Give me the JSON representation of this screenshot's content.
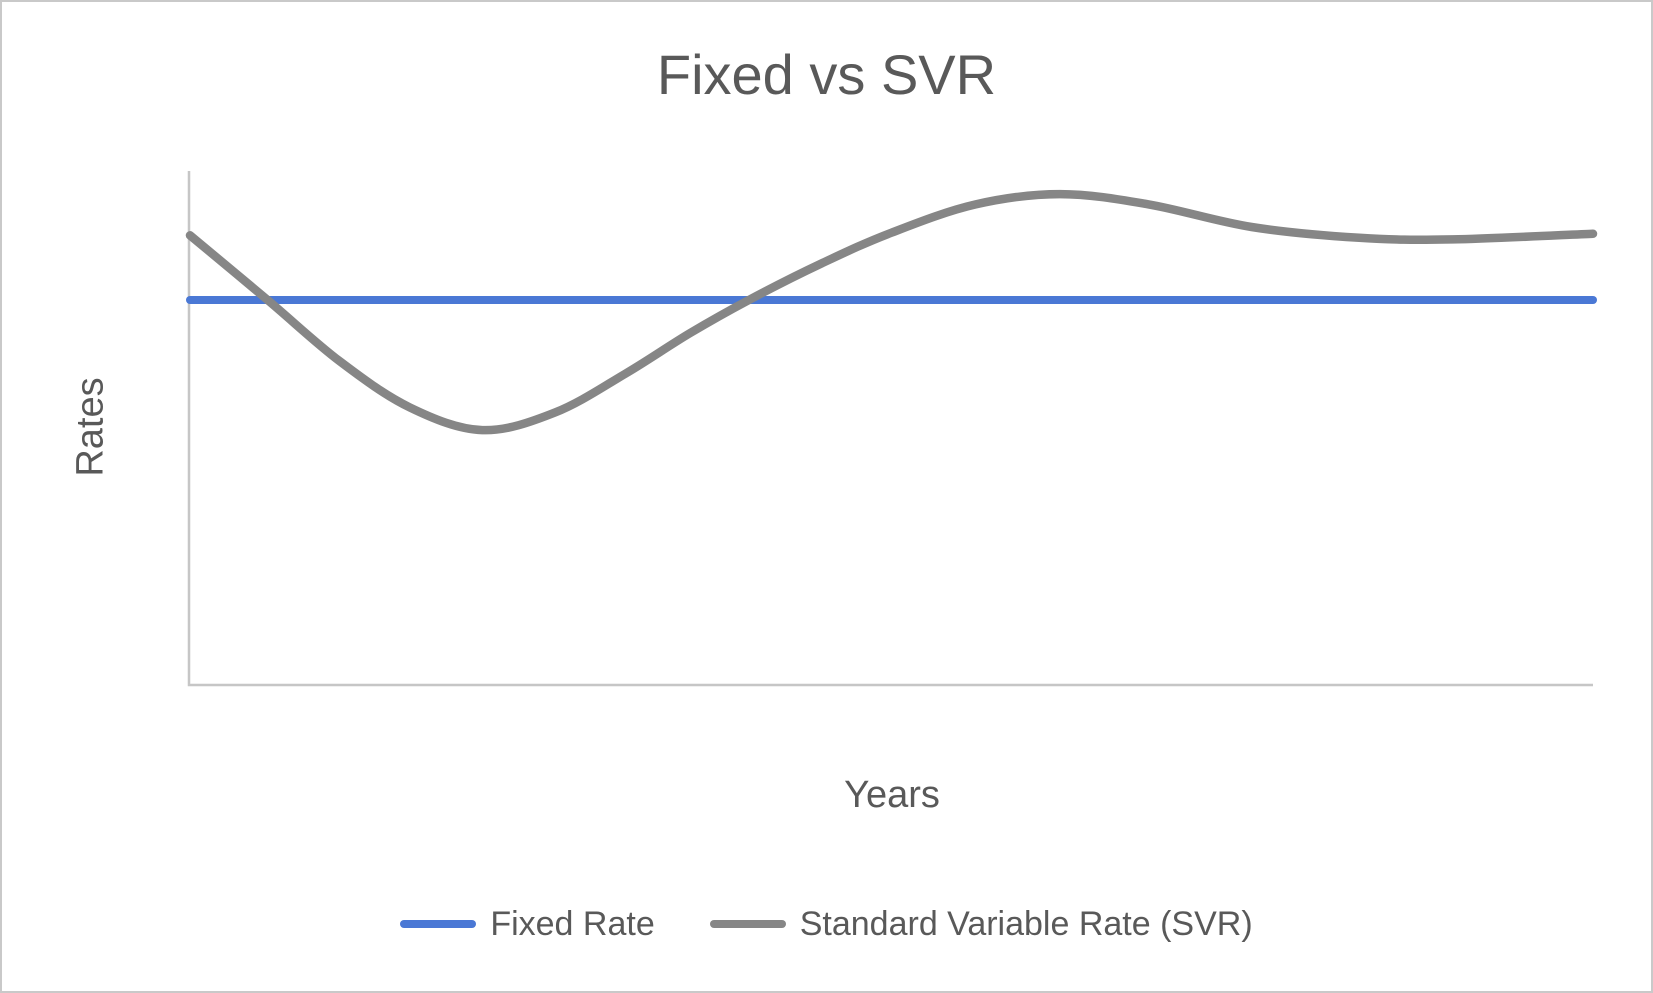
{
  "chart_data": {
    "type": "line",
    "title": "Fixed vs SVR",
    "xlabel": "Years",
    "ylabel": "Rates",
    "x_range": [
      0,
      30
    ],
    "ylim": [
      0,
      10
    ],
    "grid": false,
    "axis_tick_labels": "none",
    "legend_position": "bottom-center",
    "axis_color": "#c6c6c6",
    "text_color": "#595959",
    "series": [
      {
        "name": "Fixed Rate",
        "color": "#4a78d5",
        "style": "flat",
        "x": [
          0,
          30
        ],
        "values": [
          7.49,
          7.49
        ]
      },
      {
        "name": "Standard Variable Rate (SVR)",
        "color": "#868686",
        "style": "smooth",
        "x": [
          0,
          1.66,
          3.2,
          4.7,
          6.25,
          7.8,
          9.3,
          10.7,
          11.95,
          13.5,
          15,
          16.8,
          18.6,
          20.5,
          22.7,
          25,
          27,
          30
        ],
        "values": [
          8.75,
          7.49,
          6.3,
          5.4,
          4.96,
          5.3,
          6.05,
          6.85,
          7.49,
          8.2,
          8.8,
          9.35,
          9.55,
          9.35,
          8.91,
          8.7,
          8.67,
          8.78
        ]
      }
    ]
  }
}
